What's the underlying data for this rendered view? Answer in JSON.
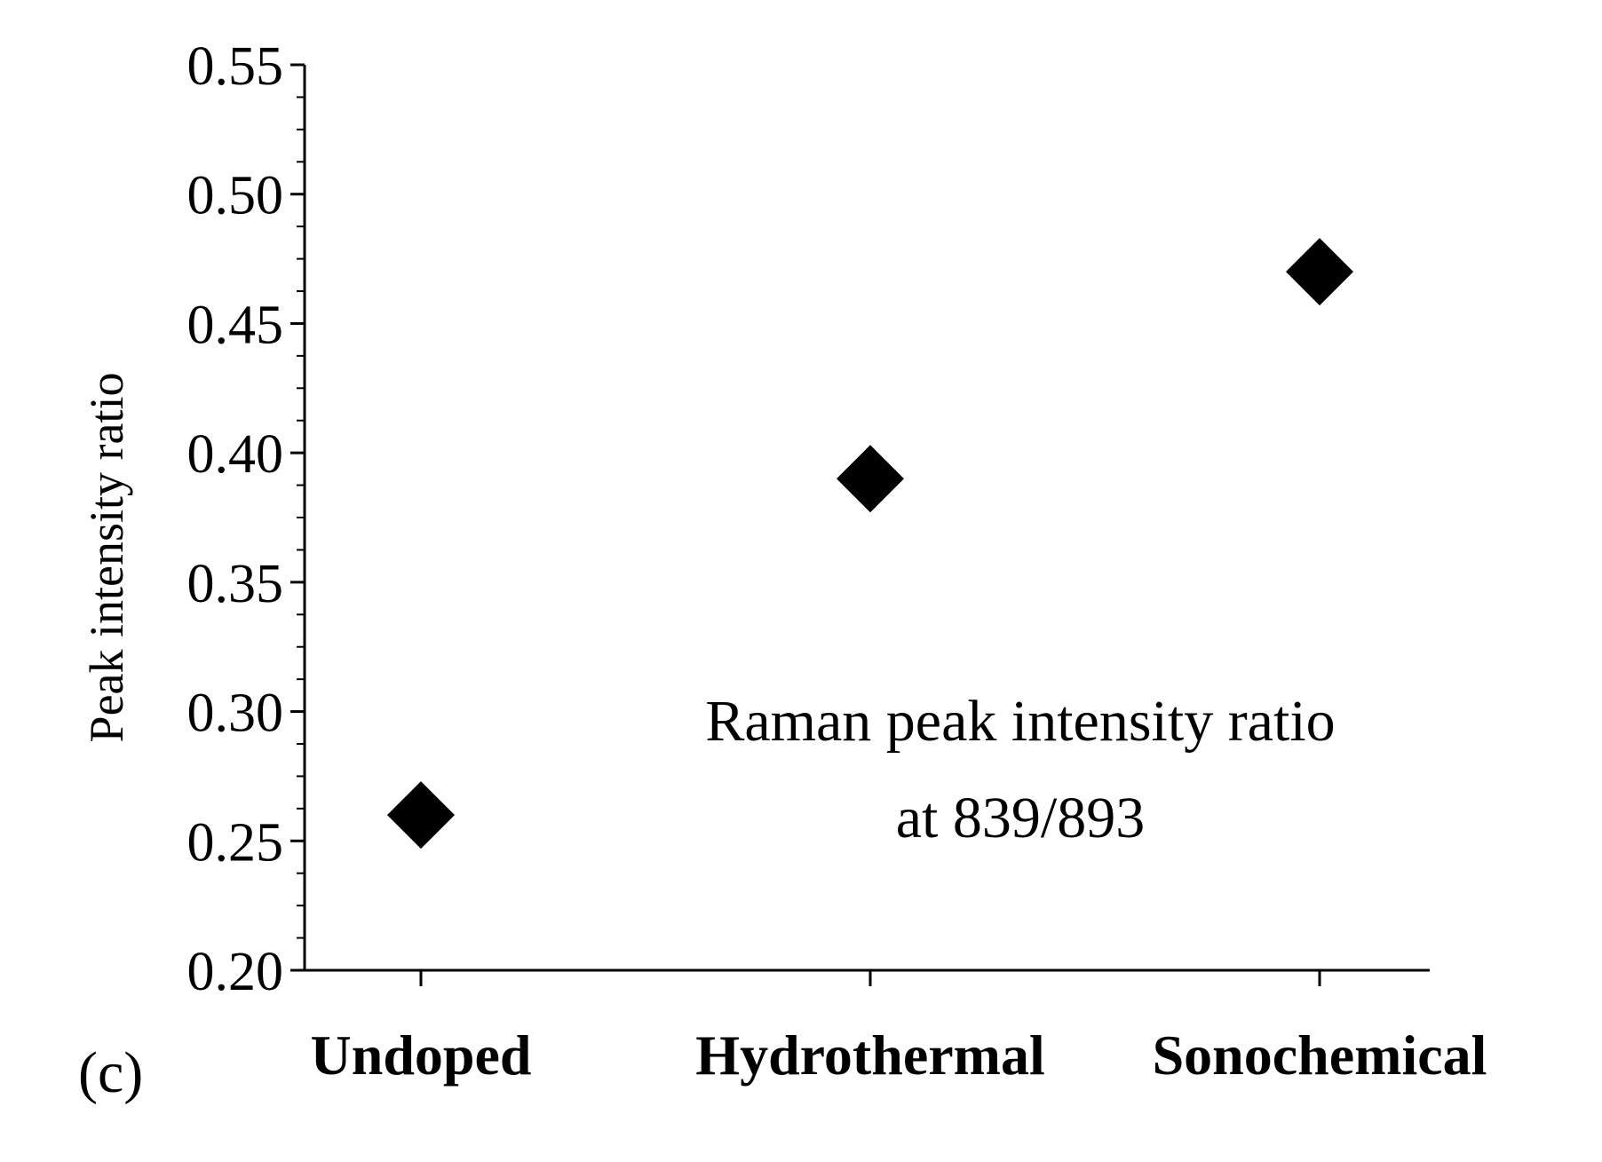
{
  "chart_data": {
    "type": "scatter",
    "title": "",
    "xlabel": "",
    "ylabel": "Peak intensity ratio",
    "categories": [
      "Undoped",
      "Hydrothermal",
      "Sonochemical"
    ],
    "series": [
      {
        "marker": "diamond",
        "color": "#000000",
        "values": [
          0.26,
          0.39,
          0.47
        ]
      }
    ],
    "ylim": [
      0.2,
      0.55
    ],
    "yticks": [
      "0.20",
      "0.25",
      "0.30",
      "0.35",
      "0.40",
      "0.45",
      "0.50",
      "0.55"
    ],
    "y_minor_ticks": true,
    "grid": false,
    "legend": "none",
    "annotation": {
      "line1": "Raman peak intensity ratio",
      "line2": "at 839/893"
    },
    "panel_label": "(c)"
  }
}
